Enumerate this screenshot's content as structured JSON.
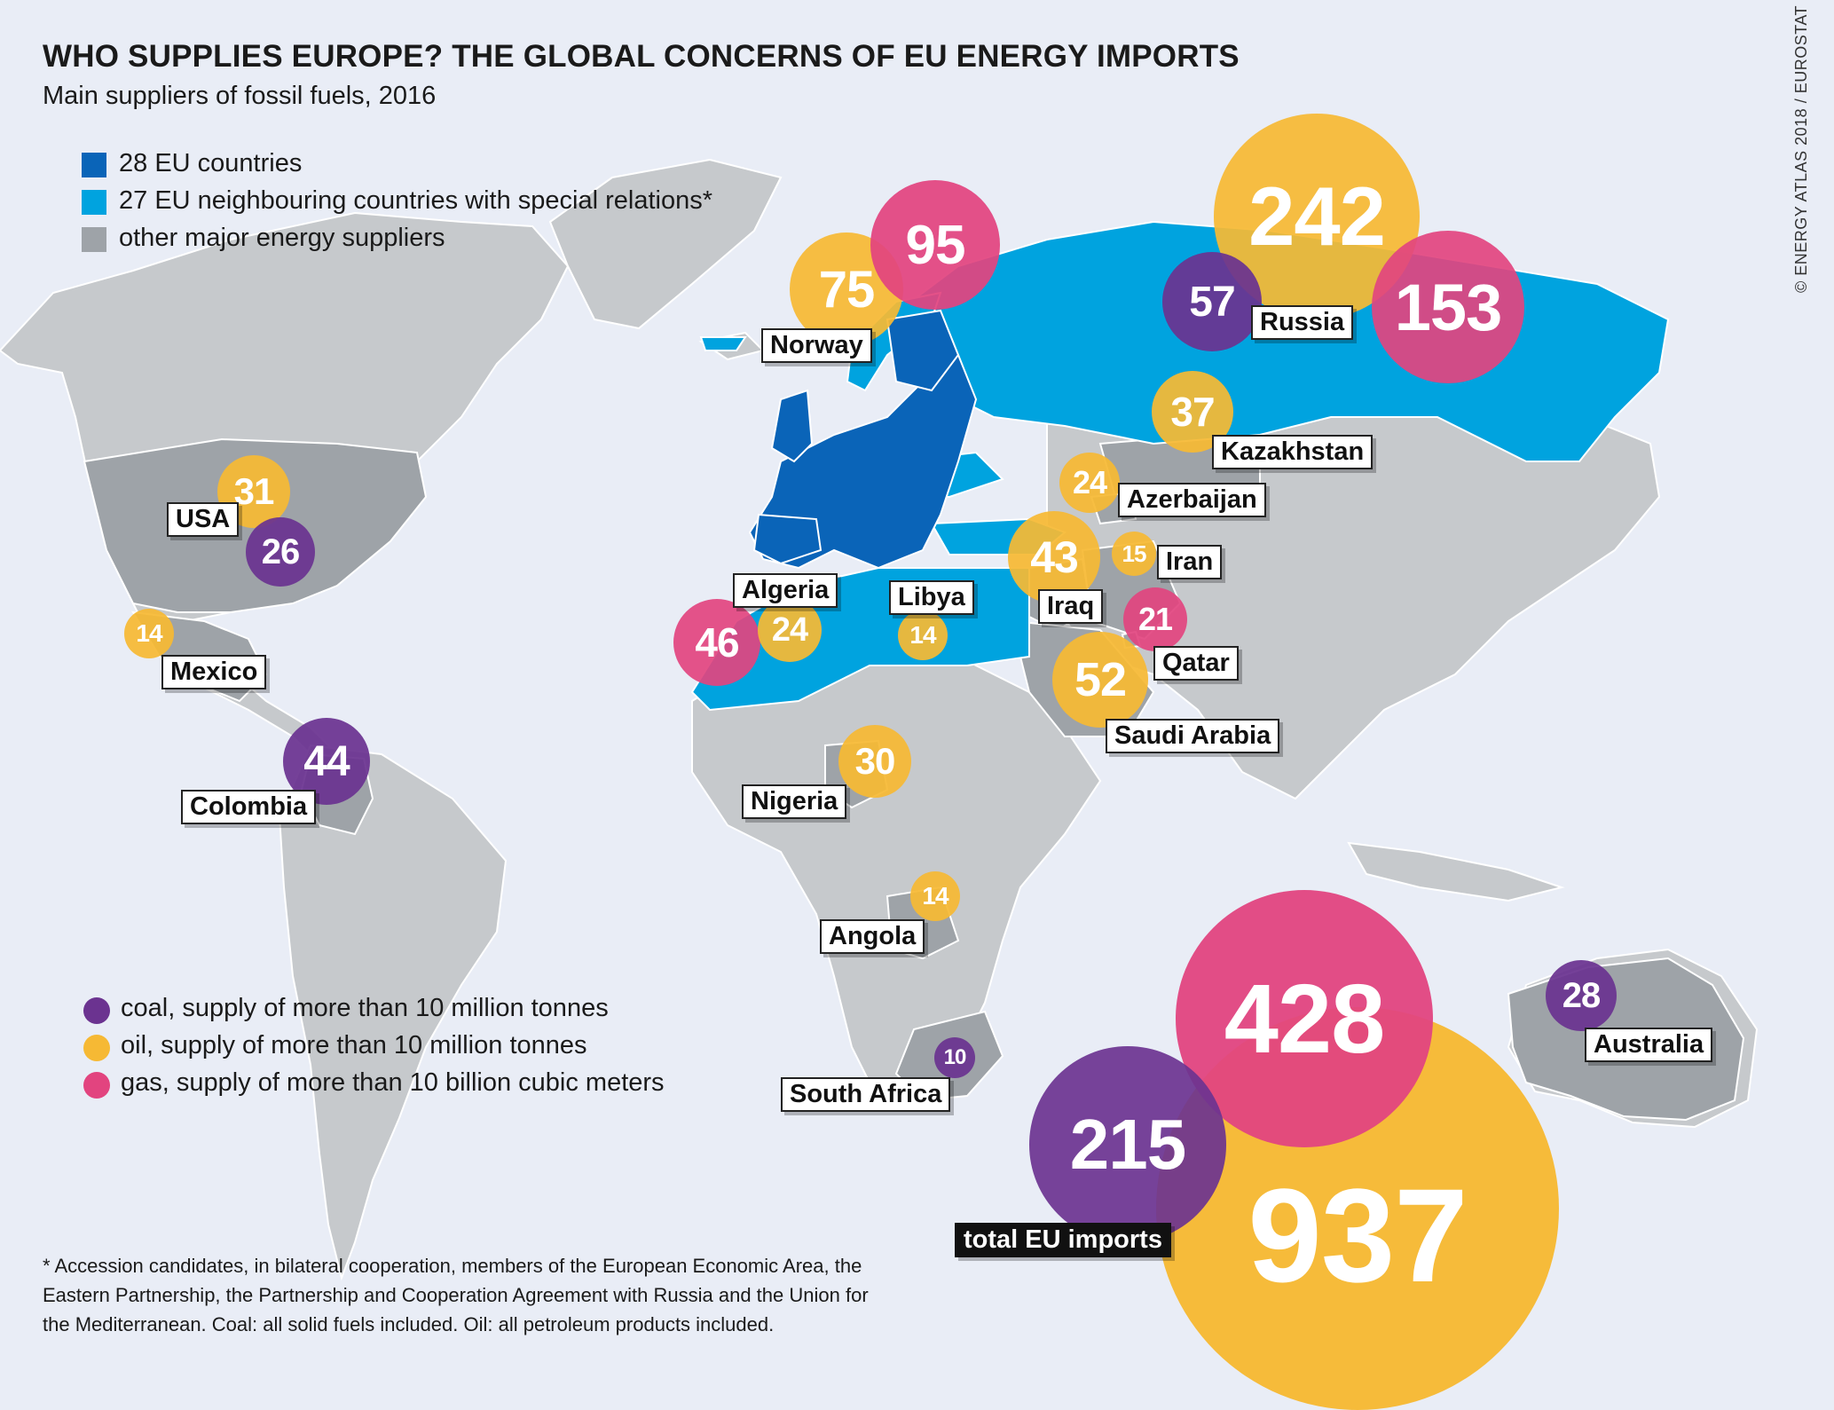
{
  "header": {
    "title": "WHO SUPPLIES EUROPE? THE GLOBAL CONCERNS OF EU ENERGY IMPORTS",
    "subtitle": "Main suppliers of fossil fuels, 2016"
  },
  "credit": "© ENERGY ATLAS 2018 / EUROSTAT",
  "colors": {
    "eu": "#0a64b8",
    "neighbour": "#00a3df",
    "other_supplier": "#9ea3a8",
    "land": "#c6c9cc",
    "background": "#e9edf6",
    "coal": "#6b3390",
    "oil": "#f6b934",
    "gas": "#e2447f"
  },
  "legend_regions": [
    {
      "label": "28 EU countries",
      "color": "#0a64b8"
    },
    {
      "label": "27 EU neighbouring countries with special relations*",
      "color": "#00a3df"
    },
    {
      "label": "other major energy suppliers",
      "color": "#9ea3a8"
    }
  ],
  "legend_fuels": [
    {
      "label": "coal, supply of more than 10 million tonnes",
      "color": "#6b3390"
    },
    {
      "label": "oil, supply of more than 10 million tonnes",
      "color": "#f6b934"
    },
    {
      "label": "gas, supply of more than 10 billion cubic meters",
      "color": "#e2447f"
    }
  ],
  "suppliers": [
    {
      "country": "Norway",
      "oil": 75,
      "gas": 95
    },
    {
      "country": "Russia",
      "coal": 57,
      "oil": 242,
      "gas": 153
    },
    {
      "country": "Kazakhstan",
      "oil": 37
    },
    {
      "country": "Azerbaijan",
      "oil": 24
    },
    {
      "country": "Iran",
      "oil": 15
    },
    {
      "country": "Iraq",
      "oil": 43
    },
    {
      "country": "Qatar",
      "gas": 21
    },
    {
      "country": "Saudi Arabia",
      "oil": 52
    },
    {
      "country": "Algeria",
      "oil": 24,
      "gas": 46
    },
    {
      "country": "Libya",
      "oil": 14
    },
    {
      "country": "USA",
      "coal": 26,
      "oil": 31
    },
    {
      "country": "Mexico",
      "oil": 14
    },
    {
      "country": "Colombia",
      "coal": 44
    },
    {
      "country": "Nigeria",
      "oil": 30
    },
    {
      "country": "Angola",
      "oil": 14
    },
    {
      "country": "South Africa",
      "coal": 10
    },
    {
      "country": "Australia",
      "coal": 28
    }
  ],
  "total": {
    "label": "total EU imports",
    "coal": 215,
    "oil": 937,
    "gas": 428
  },
  "footnote": "* Accession candidates, in bilateral cooperation, members of the European Economic Area, the Eastern Partnership, the Partnership and Cooperation Agreement with Russia and the Union for the Mediterranean. Coal: all solid fuels included. Oil: all petroleum products included."
}
